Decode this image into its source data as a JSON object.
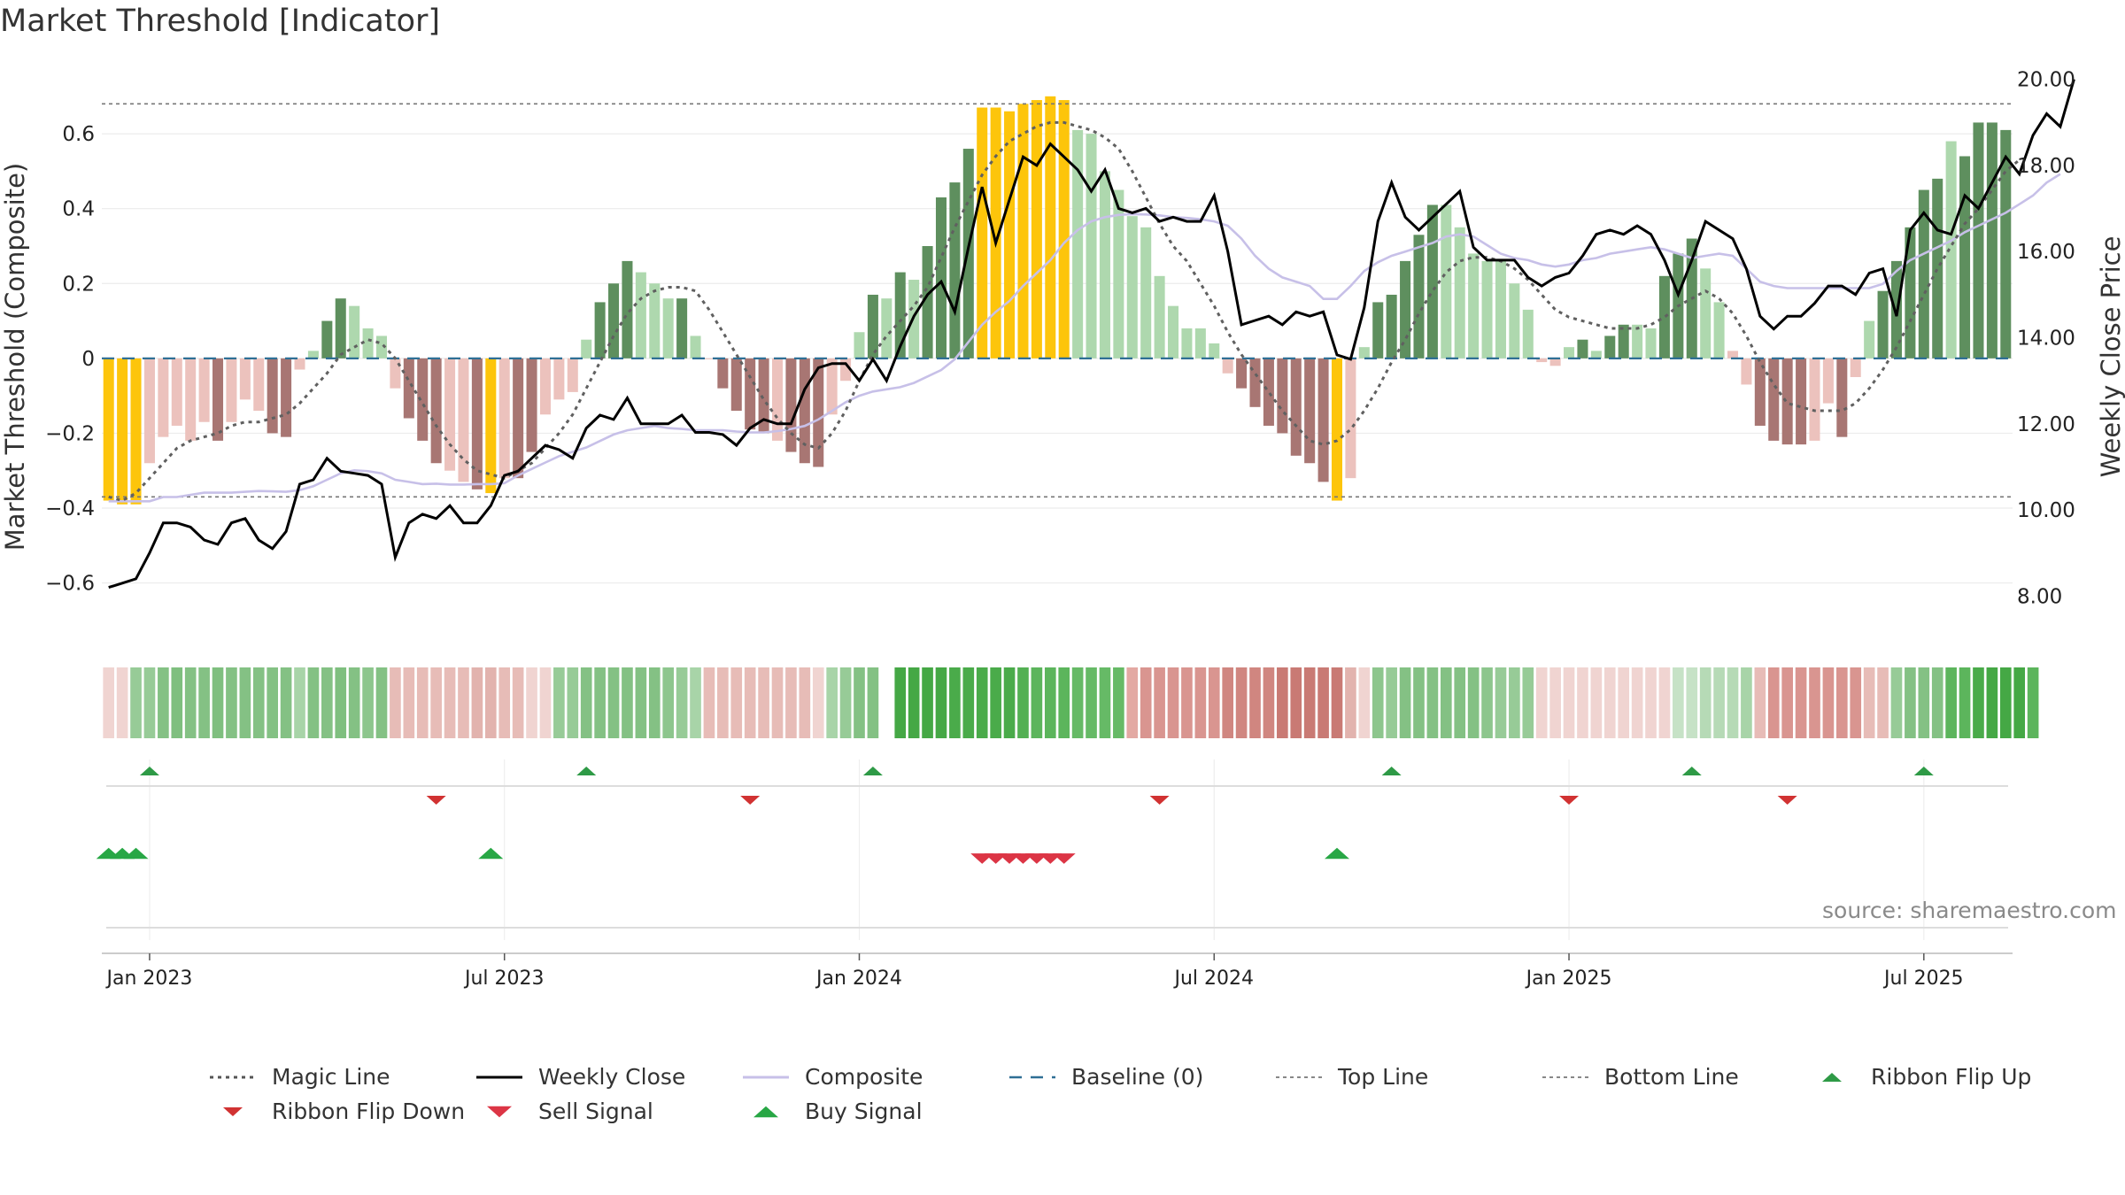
{
  "title": "Market Threshold [Indicator]",
  "source": "source: sharemaestro.com",
  "chart_data": {
    "type": "bar",
    "title": "Market Threshold [Indicator]",
    "ylabel_left": "Market Threshold (Composite)",
    "ylabel_right": "Weekly Close Price",
    "ylim_left": [
      -0.75,
      0.78
    ],
    "ylim_right": [
      7.0,
      20.3
    ],
    "left_ticks": [
      "0.6",
      "0.4",
      "0.2",
      "0",
      "−0.2",
      "−0.4",
      "−0.6"
    ],
    "left_tick_values": [
      0.6,
      0.4,
      0.2,
      0,
      -0.2,
      -0.4,
      -0.6
    ],
    "right_ticks": [
      "20.00",
      "18.00",
      "16.00",
      "14.00",
      "12.00",
      "10.00",
      "8.00"
    ],
    "right_tick_values": [
      20,
      18,
      16,
      14,
      12,
      10,
      8
    ],
    "x_ticks": [
      "Jan 2023",
      "Jul 2023",
      "Jan 2024",
      "Jul 2024",
      "Jan 2025",
      "Jul 2025"
    ],
    "x_tick_weeks": [
      3,
      29,
      55,
      81,
      107,
      133
    ],
    "top_line": 0.68,
    "bottom_line": -0.37,
    "composite": [
      -0.38,
      -0.39,
      -0.39,
      -0.28,
      -0.21,
      -0.18,
      -0.22,
      -0.17,
      -0.22,
      -0.17,
      -0.11,
      -0.14,
      -0.2,
      -0.21,
      -0.03,
      0.02,
      0.1,
      0.16,
      0.14,
      0.08,
      0.06,
      -0.08,
      -0.16,
      -0.22,
      -0.28,
      -0.3,
      -0.33,
      -0.35,
      -0.36,
      -0.32,
      -0.32,
      -0.25,
      -0.15,
      -0.11,
      -0.09,
      0.05,
      0.15,
      0.2,
      0.26,
      0.23,
      0.2,
      0.16,
      0.16,
      0.06,
      0.0,
      -0.08,
      -0.14,
      -0.19,
      -0.2,
      -0.22,
      -0.25,
      -0.28,
      -0.29,
      -0.15,
      -0.06,
      0.07,
      0.17,
      0.16,
      0.23,
      0.21,
      0.3,
      0.43,
      0.47,
      0.56,
      0.67,
      0.67,
      0.66,
      0.68,
      0.69,
      0.7,
      0.69,
      0.61,
      0.6,
      0.5,
      0.45,
      0.38,
      0.35,
      0.22,
      0.14,
      0.08,
      0.08,
      0.04,
      -0.04,
      -0.08,
      -0.13,
      -0.18,
      -0.2,
      -0.26,
      -0.28,
      -0.33,
      -0.38,
      -0.32,
      0.03,
      0.15,
      0.17,
      0.26,
      0.33,
      0.41,
      0.41,
      0.35,
      0.28,
      0.26,
      0.26,
      0.2,
      0.13,
      -0.01,
      -0.02,
      0.03,
      0.05,
      0.02,
      0.06,
      0.09,
      0.09,
      0.08,
      0.22,
      0.28,
      0.32,
      0.24,
      0.15,
      0.02,
      -0.07,
      -0.18,
      -0.22,
      -0.23,
      -0.23,
      -0.22,
      -0.12,
      -0.21,
      -0.05,
      0.1,
      0.18,
      0.26,
      0.35,
      0.45,
      0.48,
      0.58,
      0.54,
      0.63,
      0.63,
      0.61
    ],
    "bar_colors": [
      "#fdc50b",
      "#fdc50b",
      "#fdc50b",
      "#ecc2bd",
      "#ecc2bd",
      "#ecc2bd",
      "#ecc2bd",
      "#ecc2bd",
      "#a87673",
      "#ecc2bd",
      "#ecc2bd",
      "#ecc2bd",
      "#a87673",
      "#a87673",
      "#ecc2bd",
      "#aed8ae",
      "#5e8f5e",
      "#5e8f5e",
      "#aed8ae",
      "#aed8ae",
      "#aed8ae",
      "#ecc2bd",
      "#a87673",
      "#a87673",
      "#a87673",
      "#ecc2bd",
      "#ecc2bd",
      "#a87673",
      "#fdc50b",
      "#ecc2bd",
      "#a87673",
      "#a87673",
      "#ecc2bd",
      "#ecc2bd",
      "#ecc2bd",
      "#aed8ae",
      "#5e8f5e",
      "#5e8f5e",
      "#5e8f5e",
      "#aed8ae",
      "#aed8ae",
      "#aed8ae",
      "#5e8f5e",
      "#aed8ae",
      "#ecc2bd",
      "#a87673",
      "#a87673",
      "#a87673",
      "#a87673",
      "#ecc2bd",
      "#a87673",
      "#a87673",
      "#a87673",
      "#ecc2bd",
      "#ecc2bd",
      "#aed8ae",
      "#5e8f5e",
      "#aed8ae",
      "#5e8f5e",
      "#aed8ae",
      "#5e8f5e",
      "#5e8f5e",
      "#5e8f5e",
      "#5e8f5e",
      "#fdc50b",
      "#fdc50b",
      "#fdc50b",
      "#fdc50b",
      "#fdc50b",
      "#fdc50b",
      "#fdc50b",
      "#aed8ae",
      "#aed8ae",
      "#aed8ae",
      "#aed8ae",
      "#aed8ae",
      "#aed8ae",
      "#aed8ae",
      "#aed8ae",
      "#aed8ae",
      "#aed8ae",
      "#aed8ae",
      "#ecc2bd",
      "#a87673",
      "#a87673",
      "#a87673",
      "#a87673",
      "#a87673",
      "#a87673",
      "#a87673",
      "#fdc50b",
      "#ecc2bd",
      "#aed8ae",
      "#5e8f5e",
      "#5e8f5e",
      "#5e8f5e",
      "#5e8f5e",
      "#5e8f5e",
      "#aed8ae",
      "#aed8ae",
      "#aed8ae",
      "#aed8ae",
      "#aed8ae",
      "#aed8ae",
      "#aed8ae",
      "#ecc2bd",
      "#ecc2bd",
      "#aed8ae",
      "#5e8f5e",
      "#aed8ae",
      "#5e8f5e",
      "#5e8f5e",
      "#aed8ae",
      "#aed8ae",
      "#5e8f5e",
      "#5e8f5e",
      "#5e8f5e",
      "#aed8ae",
      "#aed8ae",
      "#ecc2bd",
      "#ecc2bd",
      "#a87673",
      "#a87673",
      "#a87673",
      "#a87673",
      "#ecc2bd",
      "#ecc2bd",
      "#a87673",
      "#ecc2bd",
      "#aed8ae",
      "#5e8f5e",
      "#5e8f5e",
      "#5e8f5e",
      "#5e8f5e",
      "#5e8f5e",
      "#aed8ae",
      "#5e8f5e",
      "#5e8f5e",
      "#5e8f5e",
      "#5e8f5e"
    ],
    "magic_line": [
      -0.37,
      -0.38,
      -0.36,
      -0.32,
      -0.28,
      -0.24,
      -0.22,
      -0.21,
      -0.2,
      -0.18,
      -0.17,
      -0.17,
      -0.16,
      -0.15,
      -0.12,
      -0.08,
      -0.04,
      0.01,
      0.03,
      0.05,
      0.04,
      0.0,
      -0.06,
      -0.12,
      -0.18,
      -0.23,
      -0.27,
      -0.3,
      -0.31,
      -0.32,
      -0.3,
      -0.28,
      -0.24,
      -0.2,
      -0.15,
      -0.08,
      -0.01,
      0.06,
      0.12,
      0.16,
      0.18,
      0.19,
      0.19,
      0.18,
      0.13,
      0.07,
      0.01,
      -0.05,
      -0.11,
      -0.16,
      -0.2,
      -0.23,
      -0.24,
      -0.2,
      -0.14,
      -0.06,
      0.01,
      0.06,
      0.1,
      0.14,
      0.19,
      0.27,
      0.35,
      0.42,
      0.49,
      0.54,
      0.58,
      0.6,
      0.62,
      0.63,
      0.63,
      0.62,
      0.61,
      0.59,
      0.56,
      0.5,
      0.43,
      0.36,
      0.3,
      0.26,
      0.2,
      0.14,
      0.07,
      0.01,
      -0.04,
      -0.09,
      -0.14,
      -0.18,
      -0.22,
      -0.23,
      -0.22,
      -0.19,
      -0.14,
      -0.08,
      -0.01,
      0.05,
      0.12,
      0.18,
      0.23,
      0.26,
      0.27,
      0.27,
      0.26,
      0.24,
      0.21,
      0.17,
      0.13,
      0.11,
      0.1,
      0.09,
      0.08,
      0.08,
      0.08,
      0.09,
      0.11,
      0.14,
      0.16,
      0.18,
      0.16,
      0.12,
      0.06,
      -0.01,
      -0.07,
      -0.12,
      -0.13,
      -0.14,
      -0.14,
      -0.14,
      -0.12,
      -0.08,
      -0.03,
      0.03,
      0.1,
      0.17,
      0.24,
      0.3,
      0.36,
      0.4,
      0.45,
      0.5,
      0.53
    ],
    "weekly_close": [
      8.2,
      8.3,
      8.4,
      9.0,
      9.7,
      9.7,
      9.6,
      9.3,
      9.2,
      9.7,
      9.8,
      9.3,
      9.1,
      9.5,
      10.6,
      10.7,
      11.2,
      10.9,
      10.85,
      10.8,
      10.6,
      8.9,
      9.7,
      9.9,
      9.8,
      10.1,
      9.7,
      9.7,
      10.1,
      10.8,
      10.9,
      11.2,
      11.5,
      11.4,
      11.2,
      11.9,
      12.2,
      12.1,
      12.6,
      12.0,
      12.0,
      12.0,
      12.2,
      11.8,
      11.8,
      11.75,
      11.5,
      11.9,
      12.1,
      12.0,
      12.0,
      12.8,
      13.3,
      13.4,
      13.4,
      13.0,
      13.5,
      13.0,
      13.8,
      14.5,
      15.0,
      15.3,
      14.6,
      16.1,
      17.5,
      16.2,
      17.2,
      18.2,
      18.0,
      18.5,
      18.2,
      17.9,
      17.4,
      17.9,
      17.0,
      16.9,
      17.0,
      16.7,
      16.8,
      16.7,
      16.7,
      17.3,
      16.0,
      14.3,
      14.4,
      14.5,
      14.3,
      14.6,
      14.5,
      14.6,
      13.6,
      13.5,
      14.7,
      16.7,
      17.6,
      16.8,
      16.5,
      16.8,
      17.1,
      17.4,
      16.1,
      15.8,
      15.8,
      15.8,
      15.4,
      15.2,
      15.4,
      15.5,
      15.9,
      16.4,
      16.5,
      16.4,
      16.6,
      16.4,
      15.8,
      15.0,
      15.8,
      16.7,
      16.5,
      16.3,
      15.6,
      14.5,
      14.2,
      14.5,
      14.5,
      14.8,
      15.2,
      15.2,
      15.0,
      15.5,
      15.6,
      14.5,
      16.5,
      16.9,
      16.5,
      16.4,
      17.3,
      17.0,
      17.6,
      18.2,
      17.8,
      18.7,
      19.2,
      18.9,
      20.0
    ],
    "composite_smooth": [
      10.2,
      10.2,
      10.2,
      10.2,
      10.3,
      10.3,
      10.35,
      10.4,
      10.4,
      10.4,
      10.42,
      10.44,
      10.43,
      10.42,
      10.46,
      10.55,
      10.7,
      10.85,
      10.92,
      10.9,
      10.85,
      10.7,
      10.65,
      10.6,
      10.61,
      10.59,
      10.59,
      10.6,
      10.6,
      10.62,
      10.8,
      10.95,
      11.1,
      11.25,
      11.35,
      11.45,
      11.6,
      11.75,
      11.85,
      11.9,
      11.95,
      11.9,
      11.88,
      11.85,
      11.85,
      11.85,
      11.82,
      11.8,
      11.8,
      11.83,
      11.88,
      11.95,
      12.1,
      12.3,
      12.5,
      12.65,
      12.75,
      12.8,
      12.85,
      12.95,
      13.1,
      13.25,
      13.5,
      13.9,
      14.3,
      14.6,
      14.85,
      15.2,
      15.5,
      15.8,
      16.2,
      16.5,
      16.7,
      16.8,
      16.85,
      16.87,
      16.86,
      16.84,
      16.8,
      16.78,
      16.75,
      16.7,
      16.6,
      16.3,
      15.9,
      15.6,
      15.4,
      15.3,
      15.2,
      14.9,
      14.9,
      15.2,
      15.55,
      15.75,
      15.9,
      16.0,
      16.1,
      16.2,
      16.35,
      16.4,
      16.35,
      16.15,
      15.95,
      15.85,
      15.8,
      15.7,
      15.65,
      15.7,
      15.8,
      15.85,
      15.95,
      16.0,
      16.05,
      16.1,
      16.05,
      15.95,
      15.85,
      15.9,
      15.95,
      15.9,
      15.6,
      15.3,
      15.2,
      15.15,
      15.15,
      15.15,
      15.15,
      15.15,
      15.15,
      15.15,
      15.25,
      15.55,
      15.8,
      15.95,
      16.1,
      16.25,
      16.45,
      16.6,
      16.75,
      16.9,
      17.1,
      17.3,
      17.6,
      17.8
    ],
    "ribbon_colors": [
      "#f0d4d1",
      "#f0d4d1",
      "#97cb97",
      "#97cb97",
      "#84c184",
      "#7fbf7f",
      "#84c184",
      "#84c184",
      "#7fbf7f",
      "#84c184",
      "#84c184",
      "#84c184",
      "#84c184",
      "#84c184",
      "#a8d4a8",
      "#84c184",
      "#84c184",
      "#7fbf7f",
      "#84c184",
      "#8dc68d",
      "#84c184",
      "#e7bcb7",
      "#e7bcb7",
      "#e7bcb7",
      "#e7bcb7",
      "#e7bcb7",
      "#e7bcb7",
      "#e2b3ae",
      "#e2b3ae",
      "#e7bcb7",
      "#e7bcb7",
      "#f0d4d1",
      "#f0d4d1",
      "#97cb97",
      "#97cb97",
      "#84c184",
      "#84c184",
      "#84c184",
      "#84c184",
      "#84c184",
      "#84c184",
      "#8dc68d",
      "#97cb97",
      "#a8d4a8",
      "#e7bcb7",
      "#e7bcb7",
      "#e7bcb7",
      "#e7bcb7",
      "#e7bcb7",
      "#e7bcb7",
      "#e7bcb7",
      "#e7bcb7",
      "#f0d4d1",
      "#a8d4a8",
      "#97cb97",
      "#84c184",
      "#84c184",
      "#ffffff",
      "#45a845",
      "#45a845",
      "#45a845",
      "#45a845",
      "#4aab4a",
      "#4aab4a",
      "#4aab4a",
      "#4aab4a",
      "#4aab4a",
      "#53b053",
      "#5cb55c",
      "#5cb55c",
      "#5cb55c",
      "#66ba66",
      "#66ba66",
      "#66ba66",
      "#66ba66",
      "#e3a9a3",
      "#d99590",
      "#d99590",
      "#d99590",
      "#d99590",
      "#d99590",
      "#d99590",
      "#d08680",
      "#d08680",
      "#d08680",
      "#d08680",
      "#c97a74",
      "#c97a74",
      "#c97a74",
      "#c97a74",
      "#c97a74",
      "#e2b3ae",
      "#f0d4d1",
      "#8dc68d",
      "#97cb97",
      "#84c184",
      "#84c184",
      "#84c184",
      "#84c184",
      "#84c184",
      "#84c184",
      "#8dc68d",
      "#97cb97",
      "#97cb97",
      "#97cb97",
      "#f0d4d1",
      "#f0d4d1",
      "#f0d4d1",
      "#f0d4d1",
      "#f0d4d1",
      "#f0d4d1",
      "#f0d4d1",
      "#f0d4d1",
      "#f0d4d1",
      "#f0d4d1",
      "#c6e2c6",
      "#c6e2c6",
      "#b6dab6",
      "#b6dab6",
      "#b6dab6",
      "#a8d4a8",
      "#e7bcb7",
      "#d99590",
      "#d99590",
      "#d99590",
      "#d99590",
      "#d99590",
      "#d99590",
      "#d99590",
      "#e7bcb7",
      "#e7bcb7",
      "#97cb97",
      "#84c184",
      "#84c184",
      "#84c184",
      "#5cb55c",
      "#5cb55c",
      "#4aab4a",
      "#45a845",
      "#45a845",
      "#45a845",
      "#5cb55c"
    ],
    "ribbon_flip_up_weeks": [
      3,
      35,
      56,
      94,
      116,
      133
    ],
    "ribbon_flip_down_weeks": [
      24,
      47,
      77,
      107,
      123
    ],
    "buy_signal_weeks": [
      0,
      1,
      2,
      28,
      90
    ],
    "sell_signal_weeks": [
      64,
      65,
      66,
      67,
      68,
      69,
      70
    ]
  },
  "legend": [
    {
      "label": "Magic Line",
      "kind": "dotted",
      "color": "#555555"
    },
    {
      "label": "Weekly Close",
      "kind": "solid",
      "color": "#000000"
    },
    {
      "label": "Composite",
      "kind": "solid",
      "color": "#c7c0e8"
    },
    {
      "label": "Baseline (0)",
      "kind": "dashed",
      "color": "#2f6f95"
    },
    {
      "label": "Top Line",
      "kind": "dotted-thin",
      "color": "#777777"
    },
    {
      "label": "Bottom Line",
      "kind": "dotted-thin",
      "color": "#777777"
    },
    {
      "label": "Ribbon Flip Up",
      "kind": "tri-up-small",
      "color": "#2e9a46"
    },
    {
      "label": "Ribbon Flip Down",
      "kind": "tri-down-small",
      "color": "#d13232"
    },
    {
      "label": "Sell Signal",
      "kind": "tri-down",
      "color": "#dc3545"
    },
    {
      "label": "Buy Signal",
      "kind": "tri-up",
      "color": "#28a745"
    }
  ]
}
